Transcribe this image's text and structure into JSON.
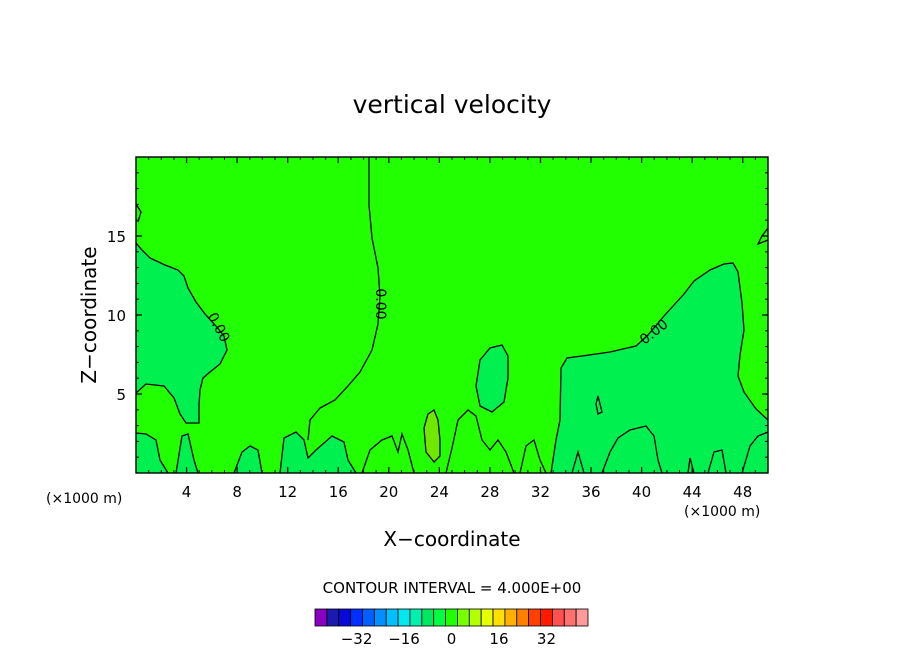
{
  "chart_data": {
    "type": "contour",
    "title": "vertical velocity",
    "xlabel": "X−coordinate",
    "ylabel": "Z−coordinate",
    "x_unit": "(×1000 m)",
    "y_unit": "(×1000 m)",
    "xlim": [
      0,
      50
    ],
    "ylim": [
      0,
      20
    ],
    "x_ticks": [
      4,
      8,
      12,
      16,
      20,
      24,
      28,
      32,
      36,
      40,
      44,
      48
    ],
    "y_ticks": [
      5,
      10,
      15
    ],
    "contour_labels": [
      {
        "text": "0.00",
        "x": 6.5,
        "z": 9.2
      },
      {
        "text": "0.00",
        "x": 19.3,
        "z": 10.7
      },
      {
        "text": "0.00",
        "x": 41.0,
        "z": 8.9
      }
    ],
    "contour_interval_text": "CONTOUR INTERVAL = 4.000E+00",
    "colorbar": {
      "colors": [
        "#8a00c0",
        "#1a1ab0",
        "#0a0ad8",
        "#0030ff",
        "#0060ff",
        "#0090ff",
        "#00c0ff",
        "#00e8f0",
        "#00f0b0",
        "#00e860",
        "#00ff40",
        "#22ff00",
        "#78ff00",
        "#b4ff00",
        "#e6ff00",
        "#ffe000",
        "#ffb000",
        "#ff8000",
        "#ff4000",
        "#ff1a00",
        "#ff5050",
        "#ff7070",
        "#ff9a9a"
      ],
      "tick_labels": [
        "−32",
        "−16",
        "0",
        "16",
        "32"
      ]
    },
    "field_colors": {
      "positive": "#22ff00",
      "slightly_negative": "#00f050",
      "moderate_positive": "#70e800",
      "mixed": "#1cec20"
    }
  }
}
